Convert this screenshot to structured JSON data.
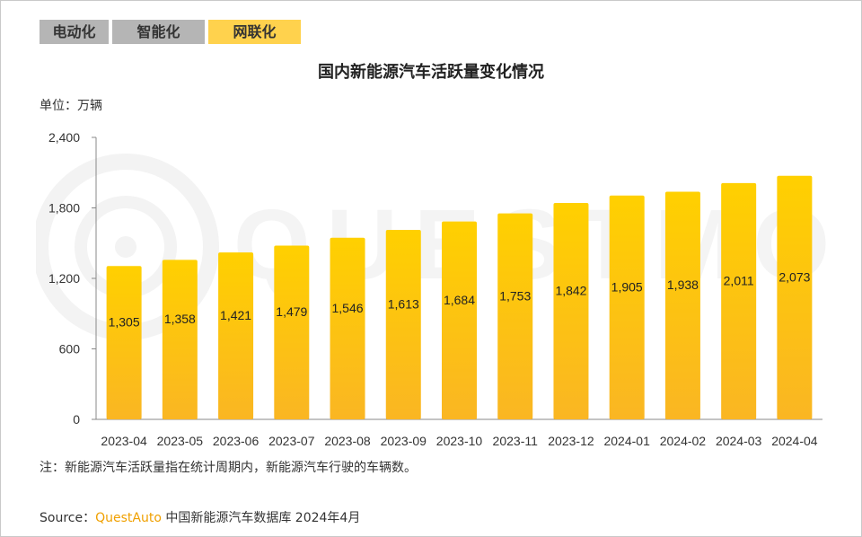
{
  "tabs": [
    {
      "label": "电动化",
      "active": false
    },
    {
      "label": "智能化",
      "active": false
    },
    {
      "label": "网联化",
      "active": true
    }
  ],
  "unit_label": "单位：万辆",
  "note": "注：新能源汽车活跃量指在统计周期内，新能源汽车行驶的车辆数。",
  "source": {
    "prefix": "Source：",
    "brand": "QuestAuto",
    "text": " 中国新能源汽车数据库 2024年4月"
  },
  "watermark_text": "QUESTMOBILE",
  "colors": {
    "bar_top": "#ffd000",
    "bar_bottom": "#fab623",
    "tab_active": "#ffd24d",
    "tab_inactive": "#b5b5b5",
    "brand": "#f0a000"
  },
  "chart_data": {
    "type": "bar",
    "title": "国内新能源汽车活跃量变化情况",
    "xlabel": "",
    "ylabel": "",
    "categories": [
      "2023-04",
      "2023-05",
      "2023-06",
      "2023-07",
      "2023-08",
      "2023-09",
      "2023-10",
      "2023-11",
      "2023-12",
      "2024-01",
      "2024-02",
      "2024-03",
      "2024-04"
    ],
    "values": [
      1305,
      1358,
      1421,
      1479,
      1546,
      1613,
      1684,
      1753,
      1842,
      1905,
      1938,
      2011,
      2073
    ],
    "data_labels": [
      "1,305",
      "1,358",
      "1,421",
      "1,479",
      "1,546",
      "1,613",
      "1,684",
      "1,753",
      "1,842",
      "1,905",
      "1,938",
      "2,011",
      "2,073"
    ],
    "ylim": [
      0,
      2400
    ],
    "yticks": [
      0,
      600,
      1200,
      1800,
      2400
    ],
    "ytick_labels": [
      "0",
      "600",
      "1,200",
      "1,800",
      "2,400"
    ],
    "grid": false,
    "legend": "none"
  }
}
